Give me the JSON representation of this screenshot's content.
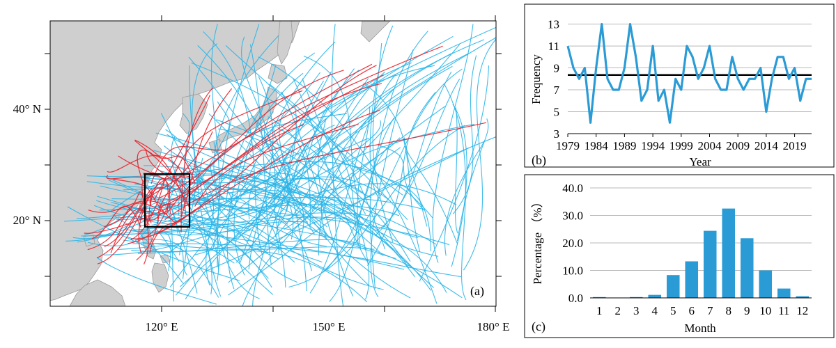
{
  "map": {
    "lon_labels": [
      "120° E",
      "150° E",
      "180° E"
    ],
    "lat_labels": [
      "40° N",
      "20° N"
    ],
    "panel_label": "(a)",
    "colors": {
      "track_blue": "#29b5e8",
      "track_red": "#e8202a",
      "land": "#cfcfcf",
      "ocean": "#ffffff",
      "box": "#000000"
    }
  },
  "chart_data": [
    {
      "type": "line",
      "panel_label": "(b)",
      "xlabel": "Year",
      "ylabel": "Frequency",
      "x_ticks": [
        "1979",
        "1984",
        "1989",
        "1994",
        "1999",
        "2004",
        "2009",
        "2014",
        "2019"
      ],
      "y_ticks": [
        "3",
        "5",
        "7",
        "9",
        "11",
        "13"
      ],
      "ylim": [
        3,
        13.8
      ],
      "xlim": [
        1979,
        2022
      ],
      "grid": "horizontal",
      "mean_line": 8.35,
      "x": [
        1979,
        1980,
        1981,
        1982,
        1983,
        1984,
        1985,
        1986,
        1987,
        1988,
        1989,
        1990,
        1991,
        1992,
        1993,
        1994,
        1995,
        1996,
        1997,
        1998,
        1999,
        2000,
        2001,
        2002,
        2003,
        2004,
        2005,
        2006,
        2007,
        2008,
        2009,
        2010,
        2011,
        2012,
        2013,
        2014,
        2015,
        2016,
        2017,
        2018,
        2019,
        2020,
        2021,
        2022
      ],
      "values": [
        11,
        9,
        8,
        9,
        4,
        9,
        13,
        8,
        7,
        7,
        9,
        13,
        10,
        6,
        7,
        11,
        6,
        7,
        4,
        8,
        7,
        11,
        10,
        8,
        9,
        11,
        8,
        7,
        7,
        10,
        8,
        7,
        8,
        8,
        9,
        5,
        8,
        10,
        10,
        8,
        9,
        6,
        8,
        8
      ],
      "series_color": "#2b9bd6"
    },
    {
      "type": "bar",
      "panel_label": "(c)",
      "xlabel": "Month",
      "ylabel": "Percentage （%）",
      "categories": [
        "1",
        "2",
        "3",
        "4",
        "5",
        "6",
        "7",
        "8",
        "9",
        "10",
        "11",
        "12"
      ],
      "values": [
        0.3,
        0.0,
        0.3,
        1.1,
        8.3,
        13.3,
        24.4,
        32.5,
        21.7,
        10.0,
        3.4,
        0.6
      ],
      "y_ticks": [
        "0.0",
        "10.0",
        "20.0",
        "30.0",
        "40.0"
      ],
      "ylim": [
        0,
        40
      ],
      "grid": "horizontal",
      "bar_color": "#2b9bd6"
    }
  ]
}
